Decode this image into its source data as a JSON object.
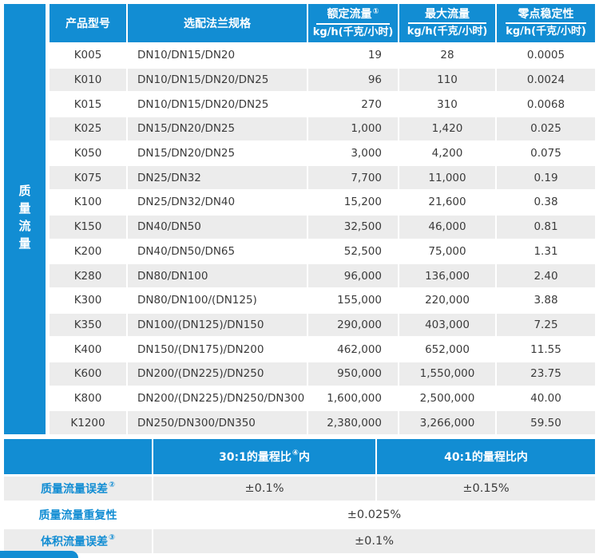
{
  "colors": {
    "blue": "#128dd3",
    "stripe_gray": "#ececec",
    "text_dark": "#3b3b3b"
  },
  "sidebar": {
    "label": "质量流量"
  },
  "main_table": {
    "header": {
      "col1": "产品型号",
      "col2": "选配法兰规格",
      "col3": {
        "label": "额定流量",
        "sup": "①",
        "unit": "kg/h(千克/小时)"
      },
      "col4": {
        "label": "最大流量",
        "sup": "",
        "unit": "kg/h(千克/小时)"
      },
      "col5": {
        "label": "零点稳定性",
        "sup": "",
        "unit": "kg/h(千克/小时)"
      }
    },
    "rows": [
      [
        "K005",
        "DN10/DN15/DN20",
        "19",
        "28",
        "0.0005"
      ],
      [
        "K010",
        "DN10/DN15/DN20/DN25",
        "96",
        "110",
        "0.0024"
      ],
      [
        "K015",
        "DN10/DN15/DN20/DN25",
        "270",
        "310",
        "0.0068"
      ],
      [
        "K025",
        "DN15/DN20/DN25",
        "1,000",
        "1,420",
        "0.025"
      ],
      [
        "K050",
        "DN15/DN20/DN25",
        "3,000",
        "4,200",
        "0.075"
      ],
      [
        "K075",
        "DN25/DN32",
        "7,700",
        "11,000",
        "0.19"
      ],
      [
        "K100",
        "DN25/DN32/DN40",
        "15,200",
        "21,600",
        "0.38"
      ],
      [
        "K150",
        "DN40/DN50",
        "32,500",
        "46,000",
        "0.81"
      ],
      [
        "K200",
        "DN40/DN50/DN65",
        "52,500",
        "75,000",
        "1.31"
      ],
      [
        "K280",
        "DN80/DN100",
        "96,000",
        "136,000",
        "2.40"
      ],
      [
        "K300",
        "DN80/DN100/(DN125)",
        "155,000",
        "220,000",
        "3.88"
      ],
      [
        "K350",
        "DN100/(DN125)/DN150",
        "290,000",
        "403,000",
        "7.25"
      ],
      [
        "K400",
        "DN150/(DN175)/DN200",
        "462,000",
        "652,000",
        "11.55"
      ],
      [
        "K600",
        "DN200/(DN225)/DN250",
        "950,000",
        "1,550,000",
        "23.75"
      ],
      [
        "K800",
        "DN200/(DN225)/DN250/DN300",
        "1,600,000",
        "2,500,000",
        "40.00"
      ],
      [
        "K1200",
        "DN250/DN300/DN350",
        "2,380,000",
        "3,266,000",
        "59.50"
      ]
    ]
  },
  "accuracy": {
    "header": {
      "col30_prefix": "30:1的量程比",
      "col30_sup": "④",
      "col30_suffix": "内",
      "col40": "40:1的量程比内"
    },
    "rows": [
      {
        "label": "质量流量误差",
        "sup": "②",
        "values": [
          "±0.1%",
          "±0.15%"
        ]
      },
      {
        "label": "质量流量重复性",
        "sup": "",
        "value": "±0.025%"
      },
      {
        "label": "体积流量误差",
        "sup": "③",
        "value": "±0.1%"
      }
    ]
  }
}
